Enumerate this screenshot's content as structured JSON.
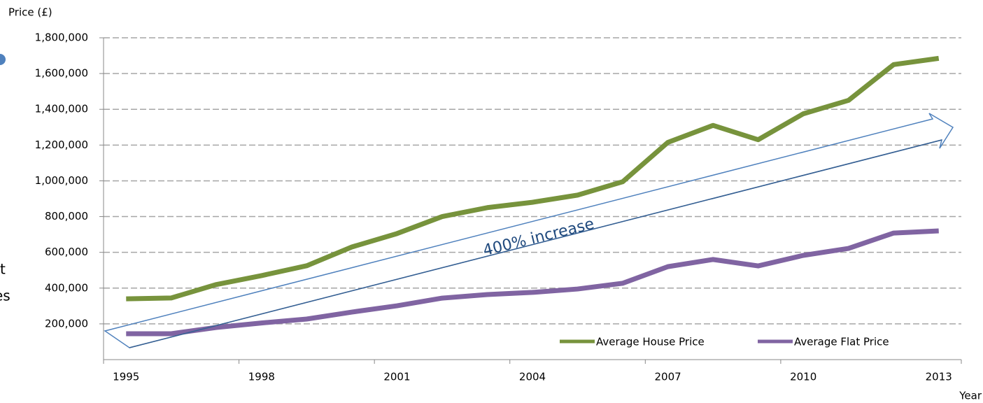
{
  "chart_data": {
    "type": "line",
    "y_label": "Price (£)",
    "x_label": "Year",
    "annotation": "400% increase",
    "fragments": [
      "t",
      "es"
    ],
    "categories": [
      "1995",
      null,
      null,
      "1998",
      null,
      null,
      "2001",
      null,
      null,
      "2004",
      null,
      null,
      "2007",
      null,
      null,
      "2010",
      null,
      null,
      "2013"
    ],
    "series": [
      {
        "name": "Average House Price",
        "color": "#77933c",
        "values": [
          340000,
          345000,
          420000,
          470000,
          525000,
          630000,
          705000,
          800000,
          850000,
          880000,
          920000,
          995000,
          1215000,
          1310000,
          1230000,
          1375000,
          1450000,
          1650000,
          1685000
        ]
      },
      {
        "name": "Average Flat Price",
        "color": "#8064a2",
        "values": [
          145000,
          145000,
          180000,
          205000,
          227000,
          266000,
          301000,
          344000,
          364000,
          376000,
          395000,
          427000,
          520000,
          560000,
          524000,
          583000,
          622000,
          708000,
          720000
        ]
      }
    ],
    "ylim": [
      0,
      1800000
    ],
    "yticks": [
      {
        "value": 200000,
        "label": "200,000"
      },
      {
        "value": 400000,
        "label": "400,000"
      },
      {
        "value": 600000,
        "label": "600,000"
      },
      {
        "value": 800000,
        "label": "800,000"
      },
      {
        "value": 1000000,
        "label": "1,000,000"
      },
      {
        "value": 1200000,
        "label": "1,200,000"
      },
      {
        "value": 1400000,
        "label": "1,400,000"
      },
      {
        "value": 1600000,
        "label": "1,600,000"
      },
      {
        "value": 1800000,
        "label": "1,800,000"
      }
    ],
    "grid": true,
    "legend": "bottom-right"
  }
}
